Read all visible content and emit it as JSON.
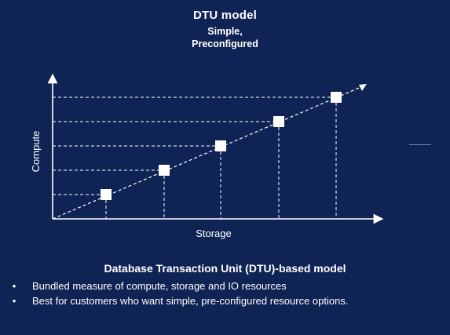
{
  "header": {
    "title": "DTU model",
    "subtitle_line1": "Simple,",
    "subtitle_line2": "Preconfigured"
  },
  "diagram": {
    "x_axis_label": "Storage",
    "y_axis_label": "Compute",
    "marker_count": 5,
    "colors": {
      "background": "#0f2454",
      "foreground": "#ffffff"
    }
  },
  "footer": {
    "heading": "Database Transaction Unit (DTU)-based model",
    "bullets": [
      "Bundled measure of compute, storage and IO resources",
      "Best for customers who want simple, pre-configured resource options."
    ]
  }
}
